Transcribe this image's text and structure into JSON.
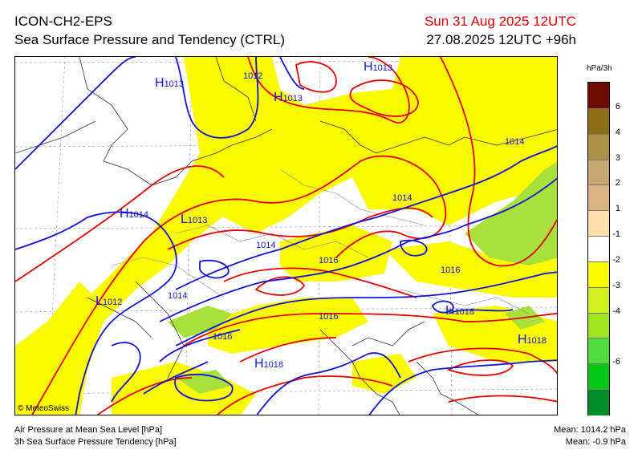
{
  "header": {
    "model": "ICON-CH2-EPS",
    "product": "Sea Surface Pressure and Tendency (CTRL)",
    "valid_time": "Sun 31 Aug 2025 12UTC",
    "run_time": "27.08.2025 12UTC +96h"
  },
  "legend": {
    "unit": "hPa/3h",
    "colors": [
      "#6e0a00",
      "#8c6c14",
      "#aa9048",
      "#c8a672",
      "#dcb484",
      "#ffe0aa",
      "#ffffff",
      "#fafa00",
      "#d2f01e",
      "#a0e61e",
      "#50dc3c",
      "#00c814",
      "#008c28"
    ],
    "ticks": [
      "6",
      "4",
      "3",
      "2",
      "1",
      "-1",
      "-2",
      "-3",
      "-4",
      "-6"
    ]
  },
  "map": {
    "isobar_labels": [
      "1012",
      "1014",
      "1016",
      "1014",
      "1014",
      "1016",
      "1014",
      "1016",
      "1016"
    ],
    "pressure_centers": [
      {
        "letter": "H",
        "value": "1013"
      },
      {
        "letter": "H",
        "value": "1013"
      },
      {
        "letter": "H",
        "value": "1013"
      },
      {
        "letter": "H",
        "value": "1014"
      },
      {
        "letter": "L",
        "value": "1013"
      },
      {
        "letter": "L",
        "value": "1012"
      },
      {
        "letter": "H",
        "value": "1018"
      },
      {
        "letter": "H",
        "value": "1018"
      },
      {
        "letter": "H",
        "value": "1018"
      }
    ],
    "colors": {
      "isobar_blue": "#1414d2",
      "tendency_red": "#e60000",
      "fill_yellow": "#fafa00",
      "fill_green": "#a8e03c"
    }
  },
  "footer": {
    "credit": "© MeteoSwiss",
    "line1": "Air Pressure at Mean Sea Level [hPa]",
    "line2": "3h Sea Surface Pressure Tendency [hPa]",
    "mean_pressure": "Mean: 1014.2 hPa",
    "mean_tendency": "Mean:  -0.9 hPa"
  }
}
